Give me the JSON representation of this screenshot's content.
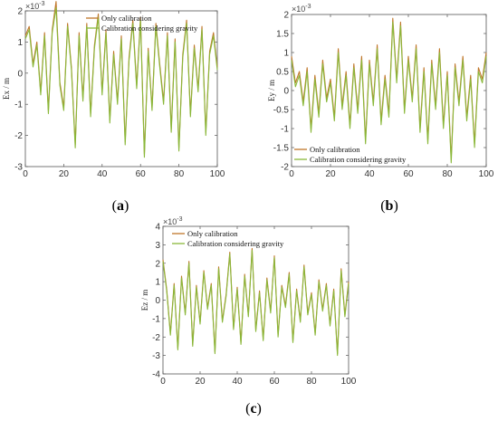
{
  "colors": {
    "series1": "#c0762a",
    "series2": "#8ab83a",
    "axis": "#555555"
  },
  "chart_data": [
    {
      "type": "line",
      "panel_label": "a",
      "ylabel": "Ex / m",
      "exponent": "×10",
      "exponent_power": "-3",
      "xlim": [
        0,
        100
      ],
      "ylim": [
        -3,
        2
      ],
      "xticks": [
        0,
        20,
        40,
        60,
        80,
        100
      ],
      "yticks": [
        -3,
        -2,
        -1,
        0,
        1,
        2
      ],
      "legend_position": "top-center",
      "series": [
        {
          "name": "Only calibration",
          "x": [
            0,
            2,
            4,
            6,
            8,
            10,
            12,
            14,
            16,
            18,
            20,
            22,
            24,
            26,
            28,
            30,
            32,
            34,
            36,
            38,
            40,
            42,
            44,
            46,
            48,
            50,
            52,
            54,
            56,
            58,
            60,
            62,
            64,
            66,
            68,
            70,
            72,
            74,
            76,
            78,
            80,
            82,
            84,
            86,
            88,
            90,
            92,
            94,
            96,
            98,
            100
          ],
          "values": [
            1.2,
            1.5,
            0.3,
            1.0,
            -0.6,
            1.3,
            -1.2,
            1.4,
            2.3,
            -0.3,
            -1.1,
            1.6,
            0.2,
            -2.3,
            1.3,
            -0.8,
            1.6,
            -1.3,
            0.9,
            1.9,
            -0.6,
            1.4,
            -1.5,
            0.7,
            -0.9,
            1.2,
            -2.2,
            0.5,
            1.7,
            -0.4,
            1.8,
            -2.6,
            0.8,
            -1.1,
            1.6,
            0.3,
            -0.9,
            1.3,
            -1.8,
            1.1,
            -2.4,
            0.6,
            1.7,
            -1.3,
            0.9,
            -0.5,
            1.5,
            -1.9,
            0.7,
            1.3,
            0.2
          ]
        },
        {
          "name": "Calibration considering gravity",
          "x": [
            0,
            2,
            4,
            6,
            8,
            10,
            12,
            14,
            16,
            18,
            20,
            22,
            24,
            26,
            28,
            30,
            32,
            34,
            36,
            38,
            40,
            42,
            44,
            46,
            48,
            50,
            52,
            54,
            56,
            58,
            60,
            62,
            64,
            66,
            68,
            70,
            72,
            74,
            76,
            78,
            80,
            82,
            84,
            86,
            88,
            90,
            92,
            94,
            96,
            98,
            100
          ],
          "values": [
            1.1,
            1.4,
            0.2,
            0.9,
            -0.7,
            1.2,
            -1.3,
            1.3,
            2.1,
            -0.4,
            -1.2,
            1.5,
            0.1,
            -2.4,
            1.2,
            -0.9,
            1.5,
            -1.4,
            0.8,
            1.8,
            -0.7,
            1.3,
            -1.6,
            0.6,
            -1.0,
            1.1,
            -2.3,
            0.4,
            1.6,
            -0.5,
            1.7,
            -2.7,
            0.7,
            -1.2,
            1.5,
            0.2,
            -1.0,
            1.2,
            -1.9,
            1.0,
            -2.5,
            0.5,
            1.6,
            -1.4,
            0.8,
            -0.6,
            1.4,
            -2.0,
            0.6,
            1.2,
            0.1
          ]
        }
      ]
    },
    {
      "type": "line",
      "panel_label": "b",
      "ylabel": "Ey / m",
      "exponent": "×10",
      "exponent_power": "-3",
      "xlim": [
        0,
        100
      ],
      "ylim": [
        -2,
        2
      ],
      "xticks": [
        0,
        20,
        40,
        60,
        80,
        100
      ],
      "yticks": [
        -2,
        -1.5,
        -1,
        -0.5,
        0,
        0.5,
        1,
        1.5,
        2
      ],
      "legend_position": "bottom-left",
      "series": [
        {
          "name": "Only calibration",
          "x": [
            0,
            2,
            4,
            6,
            8,
            10,
            12,
            14,
            16,
            18,
            20,
            22,
            24,
            26,
            28,
            30,
            32,
            34,
            36,
            38,
            40,
            42,
            44,
            46,
            48,
            50,
            52,
            54,
            56,
            58,
            60,
            62,
            64,
            66,
            68,
            70,
            72,
            74,
            76,
            78,
            80,
            82,
            84,
            86,
            88,
            90,
            92,
            94,
            96,
            98,
            100
          ],
          "values": [
            0.9,
            0.2,
            0.5,
            -0.3,
            0.6,
            -1.0,
            0.4,
            -0.6,
            0.8,
            -0.2,
            0.3,
            -0.7,
            1.1,
            -0.4,
            0.5,
            -0.9,
            0.7,
            -0.5,
            0.9,
            -1.3,
            0.8,
            -0.3,
            1.2,
            -0.8,
            0.4,
            -0.6,
            1.9,
            0.3,
            1.8,
            -0.5,
            0.9,
            -0.2,
            1.2,
            -1.0,
            0.6,
            -1.3,
            0.8,
            -0.4,
            1.1,
            -0.9,
            0.5,
            -1.8,
            0.7,
            -0.3,
            0.9,
            -0.7,
            0.4,
            -1.4,
            0.6,
            0.3,
            1.0
          ]
        },
        {
          "name": "Calibration considering gravity",
          "x": [
            0,
            2,
            4,
            6,
            8,
            10,
            12,
            14,
            16,
            18,
            20,
            22,
            24,
            26,
            28,
            30,
            32,
            34,
            36,
            38,
            40,
            42,
            44,
            46,
            48,
            50,
            52,
            54,
            56,
            58,
            60,
            62,
            64,
            66,
            68,
            70,
            72,
            74,
            76,
            78,
            80,
            82,
            84,
            86,
            88,
            90,
            92,
            94,
            96,
            98,
            100
          ],
          "values": [
            0.8,
            0.1,
            0.4,
            -0.4,
            0.5,
            -1.1,
            0.3,
            -0.7,
            0.7,
            -0.3,
            0.2,
            -0.8,
            1.0,
            -0.5,
            0.4,
            -1.0,
            0.6,
            -0.6,
            0.8,
            -1.4,
            0.7,
            -0.4,
            1.1,
            -0.9,
            0.3,
            -0.7,
            1.8,
            0.2,
            1.7,
            -0.6,
            0.8,
            -0.3,
            1.1,
            -1.1,
            0.5,
            -1.4,
            0.7,
            -0.5,
            1.0,
            -1.0,
            0.4,
            -1.9,
            0.6,
            -0.4,
            0.8,
            -0.8,
            0.3,
            -1.5,
            0.5,
            0.2,
            0.9
          ]
        }
      ]
    },
    {
      "type": "line",
      "panel_label": "c",
      "ylabel": "Ez / m",
      "exponent": "×10",
      "exponent_power": "-3",
      "xlim": [
        0,
        100
      ],
      "ylim": [
        -4,
        4
      ],
      "xticks": [
        0,
        20,
        40,
        60,
        80,
        100
      ],
      "yticks": [
        -4,
        -3,
        -2,
        -1,
        0,
        1,
        2,
        3,
        4
      ],
      "legend_position": "top-center",
      "series": [
        {
          "name": "Only calibration",
          "x": [
            0,
            2,
            4,
            6,
            8,
            10,
            12,
            14,
            16,
            18,
            20,
            22,
            24,
            26,
            28,
            30,
            32,
            34,
            36,
            38,
            40,
            42,
            44,
            46,
            48,
            50,
            52,
            54,
            56,
            58,
            60,
            62,
            64,
            66,
            68,
            70,
            72,
            74,
            76,
            78,
            80,
            82,
            84,
            86,
            88,
            90,
            92,
            94,
            96,
            98,
            100
          ],
          "values": [
            2.2,
            0.6,
            -1.8,
            0.9,
            -2.6,
            1.3,
            -0.7,
            2.1,
            -2.4,
            0.8,
            -1.2,
            1.6,
            -0.4,
            0.9,
            -2.8,
            1.8,
            -1.1,
            0.3,
            2.6,
            -1.5,
            0.7,
            -2.3,
            1.4,
            -0.8,
            2.8,
            -1.6,
            0.5,
            -2.1,
            1.2,
            -0.6,
            2.4,
            -1.9,
            0.8,
            -0.3,
            1.5,
            -2.2,
            0.6,
            -1.1,
            1.9,
            -0.7,
            0.4,
            -1.8,
            1.1,
            -0.5,
            0.9,
            -1.3,
            0.6,
            -2.9,
            1.7,
            -0.8,
            1.0
          ]
        },
        {
          "name": "Calibration considering gravity",
          "x": [
            0,
            2,
            4,
            6,
            8,
            10,
            12,
            14,
            16,
            18,
            20,
            22,
            24,
            26,
            28,
            30,
            32,
            34,
            36,
            38,
            40,
            42,
            44,
            46,
            48,
            50,
            52,
            54,
            56,
            58,
            60,
            62,
            64,
            66,
            68,
            70,
            72,
            74,
            76,
            78,
            80,
            82,
            84,
            86,
            88,
            90,
            92,
            94,
            96,
            98,
            100
          ],
          "values": [
            2.1,
            0.5,
            -1.9,
            0.8,
            -2.7,
            1.2,
            -0.8,
            2.0,
            -2.5,
            0.7,
            -1.3,
            1.5,
            -0.5,
            0.8,
            -2.9,
            1.7,
            -1.2,
            0.2,
            2.5,
            -1.6,
            0.6,
            -2.4,
            1.3,
            -0.9,
            2.7,
            -1.7,
            0.4,
            -2.2,
            1.1,
            -0.7,
            2.3,
            -2.0,
            0.7,
            -0.4,
            1.4,
            -2.3,
            0.5,
            -1.2,
            1.8,
            -0.8,
            0.3,
            -1.9,
            1.0,
            -0.6,
            0.8,
            -1.4,
            0.5,
            -3.0,
            1.6,
            -0.9,
            0.9
          ]
        }
      ]
    }
  ]
}
